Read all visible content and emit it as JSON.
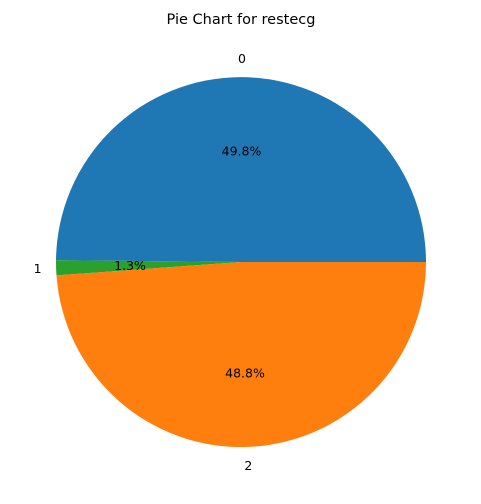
{
  "chart_data": {
    "type": "pie",
    "title": "Pie Chart for restecg",
    "slices": [
      {
        "label": "0",
        "value": 49.8,
        "pct_label": "49.8%",
        "color": "#1f77b4"
      },
      {
        "label": "1",
        "value": 1.3,
        "pct_label": "1.3%",
        "color": "#2ca02c"
      },
      {
        "label": "2",
        "value": 48.8,
        "pct_label": "48.8%",
        "color": "#ff7f0e"
      }
    ],
    "start_angle_deg": 0,
    "direction": "counterclockwise",
    "legend": "none"
  }
}
